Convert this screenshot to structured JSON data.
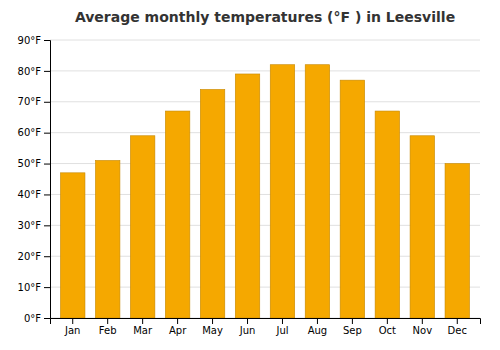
{
  "chart_data": {
    "type": "bar",
    "title": "Average monthly temperatures (°F ) in Leesville",
    "categories": [
      "Jan",
      "Feb",
      "Mar",
      "Apr",
      "May",
      "Jun",
      "Jul",
      "Aug",
      "Sep",
      "Oct",
      "Nov",
      "Dec"
    ],
    "values": [
      47,
      51,
      59,
      67,
      74,
      79,
      82,
      82,
      77,
      67,
      59,
      50
    ],
    "color": "#F5A800",
    "ylim": [
      0,
      90
    ],
    "yticks": [
      {
        "value": 0,
        "label": "0°F"
      },
      {
        "value": 10,
        "label": "10°F"
      },
      {
        "value": 20,
        "label": "20°F"
      },
      {
        "value": 30,
        "label": "30°F"
      },
      {
        "value": 40,
        "label": "40°F"
      },
      {
        "value": 50,
        "label": "50°F"
      },
      {
        "value": 60,
        "label": "60°F"
      },
      {
        "value": 70,
        "label": "70°F"
      },
      {
        "value": 80,
        "label": "80°F"
      },
      {
        "value": 90,
        "label": "90°F"
      }
    ],
    "grid": true
  }
}
